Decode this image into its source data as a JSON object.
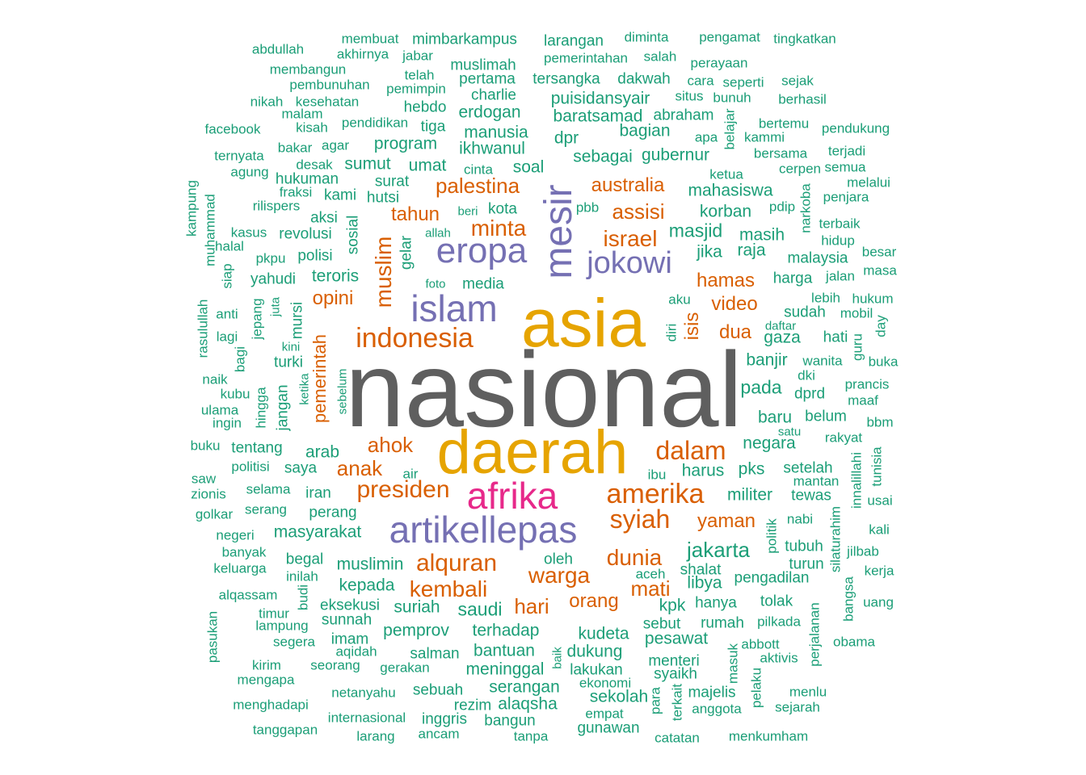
{
  "colors": {
    "gray": "#5f5f5f",
    "gold": "#e6a400",
    "purple": "#7570b3",
    "magenta": "#e7298a",
    "orange": "#d95f02",
    "green": "#1b9e77"
  },
  "words": [
    {
      "text": "nasional",
      "color": "gray"
    },
    {
      "text": "asia",
      "color": "gold"
    },
    {
      "text": "daerah",
      "color": "gold"
    },
    {
      "text": "islam",
      "color": "purple"
    },
    {
      "text": "eropa",
      "color": "purple"
    },
    {
      "text": "mesir",
      "color": "purple"
    },
    {
      "text": "jokowi",
      "color": "purple"
    },
    {
      "text": "artikellepas",
      "color": "purple"
    },
    {
      "text": "afrika",
      "color": "magenta"
    },
    {
      "text": "indonesia",
      "color": "orange"
    },
    {
      "text": "amerika",
      "color": "orange"
    },
    {
      "text": "syiah",
      "color": "orange"
    },
    {
      "text": "dalam",
      "color": "orange"
    },
    {
      "text": "presiden",
      "color": "orange"
    },
    {
      "text": "muslim",
      "color": "orange"
    },
    {
      "text": "palestina",
      "color": "orange"
    },
    {
      "text": "australia",
      "color": "orange"
    },
    {
      "text": "minta",
      "color": "orange"
    },
    {
      "text": "israel",
      "color": "orange"
    },
    {
      "text": "assisi",
      "color": "orange"
    },
    {
      "text": "tahun",
      "color": "orange"
    },
    {
      "text": "hamas",
      "color": "orange"
    },
    {
      "text": "video",
      "color": "orange"
    },
    {
      "text": "isis",
      "color": "orange"
    },
    {
      "text": "dua",
      "color": "orange"
    },
    {
      "text": "opini",
      "color": "orange"
    },
    {
      "text": "ahok",
      "color": "orange"
    },
    {
      "text": "anak",
      "color": "orange"
    },
    {
      "text": "alquran",
      "color": "orange"
    },
    {
      "text": "dunia",
      "color": "orange"
    },
    {
      "text": "kembali",
      "color": "orange"
    },
    {
      "text": "warga",
      "color": "orange"
    },
    {
      "text": "yaman",
      "color": "orange"
    },
    {
      "text": "mati",
      "color": "orange"
    },
    {
      "text": "hari",
      "color": "orange"
    },
    {
      "text": "orang",
      "color": "orange"
    },
    {
      "text": "pemerintah",
      "color": "orange"
    },
    {
      "text": "membuat",
      "color": "green"
    },
    {
      "text": "mimbarkampus",
      "color": "green"
    },
    {
      "text": "larangan",
      "color": "green"
    },
    {
      "text": "diminta",
      "color": "green"
    },
    {
      "text": "pengamat",
      "color": "green"
    },
    {
      "text": "tingkatkan",
      "color": "green"
    },
    {
      "text": "abdullah",
      "color": "green"
    },
    {
      "text": "akhirnya",
      "color": "green"
    },
    {
      "text": "jabar",
      "color": "green"
    },
    {
      "text": "muslimah",
      "color": "green"
    },
    {
      "text": "pemerintahan",
      "color": "green"
    },
    {
      "text": "salah",
      "color": "green"
    },
    {
      "text": "perayaan",
      "color": "green"
    },
    {
      "text": "membangun",
      "color": "green"
    },
    {
      "text": "telah",
      "color": "green"
    },
    {
      "text": "pertama",
      "color": "green"
    },
    {
      "text": "tersangka",
      "color": "green"
    },
    {
      "text": "dakwah",
      "color": "green"
    },
    {
      "text": "cara",
      "color": "green"
    },
    {
      "text": "seperti",
      "color": "green"
    },
    {
      "text": "sejak",
      "color": "green"
    },
    {
      "text": "pembunuhan",
      "color": "green"
    },
    {
      "text": "pemimpin",
      "color": "green"
    },
    {
      "text": "charlie",
      "color": "green"
    },
    {
      "text": "puisidansyair",
      "color": "green"
    },
    {
      "text": "situs",
      "color": "green"
    },
    {
      "text": "bunuh",
      "color": "green"
    },
    {
      "text": "berhasil",
      "color": "green"
    },
    {
      "text": "nikah",
      "color": "green"
    },
    {
      "text": "kesehatan",
      "color": "green"
    },
    {
      "text": "hebdo",
      "color": "green"
    },
    {
      "text": "malam",
      "color": "green"
    },
    {
      "text": "erdogan",
      "color": "green"
    },
    {
      "text": "baratsamad",
      "color": "green"
    },
    {
      "text": "abraham",
      "color": "green"
    },
    {
      "text": "pendidikan",
      "color": "green"
    },
    {
      "text": "bertemu",
      "color": "green"
    },
    {
      "text": "facebook",
      "color": "green"
    },
    {
      "text": "kisah",
      "color": "green"
    },
    {
      "text": "tiga",
      "color": "green"
    },
    {
      "text": "manusia",
      "color": "green"
    },
    {
      "text": "bagian",
      "color": "green"
    },
    {
      "text": "apa",
      "color": "green"
    },
    {
      "text": "belajar",
      "color": "green"
    },
    {
      "text": "kammi",
      "color": "green"
    },
    {
      "text": "pendukung",
      "color": "green"
    },
    {
      "text": "bakar",
      "color": "green"
    },
    {
      "text": "agar",
      "color": "green"
    },
    {
      "text": "program",
      "color": "green"
    },
    {
      "text": "ikhwanul",
      "color": "green"
    },
    {
      "text": "dpr",
      "color": "green"
    },
    {
      "text": "sebagai",
      "color": "green"
    },
    {
      "text": "gubernur",
      "color": "green"
    },
    {
      "text": "bersama",
      "color": "green"
    },
    {
      "text": "terjadi",
      "color": "green"
    },
    {
      "text": "ternyata",
      "color": "green"
    },
    {
      "text": "desak",
      "color": "green"
    },
    {
      "text": "sumut",
      "color": "green"
    },
    {
      "text": "umat",
      "color": "green"
    },
    {
      "text": "cinta",
      "color": "green"
    },
    {
      "text": "soal",
      "color": "green"
    },
    {
      "text": "ketua",
      "color": "green"
    },
    {
      "text": "cerpen",
      "color": "green"
    },
    {
      "text": "semua",
      "color": "green"
    },
    {
      "text": "agung",
      "color": "green"
    },
    {
      "text": "hukuman",
      "color": "green"
    },
    {
      "text": "surat",
      "color": "green"
    },
    {
      "text": "mahasiswa",
      "color": "green"
    },
    {
      "text": "melalui",
      "color": "green"
    },
    {
      "text": "kampung",
      "color": "green"
    },
    {
      "text": "fraksi",
      "color": "green"
    },
    {
      "text": "kami",
      "color": "green"
    },
    {
      "text": "hutsi",
      "color": "green"
    },
    {
      "text": "narkoba",
      "color": "green"
    },
    {
      "text": "penjara",
      "color": "green"
    },
    {
      "text": "muhammad",
      "color": "green"
    },
    {
      "text": "rilispers",
      "color": "green"
    },
    {
      "text": "kota",
      "color": "green"
    },
    {
      "text": "beri",
      "color": "green"
    },
    {
      "text": "pbb",
      "color": "green"
    },
    {
      "text": "korban",
      "color": "green"
    },
    {
      "text": "pdip",
      "color": "green"
    },
    {
      "text": "aksi",
      "color": "green"
    },
    {
      "text": "terbaik",
      "color": "green"
    },
    {
      "text": "kasus",
      "color": "green"
    },
    {
      "text": "revolusi",
      "color": "green"
    },
    {
      "text": "sosial",
      "color": "green"
    },
    {
      "text": "allah",
      "color": "green"
    },
    {
      "text": "masjid",
      "color": "green"
    },
    {
      "text": "masih",
      "color": "green"
    },
    {
      "text": "hidup",
      "color": "green"
    },
    {
      "text": "halal",
      "color": "green"
    },
    {
      "text": "gelar",
      "color": "green"
    },
    {
      "text": "jika",
      "color": "green"
    },
    {
      "text": "raja",
      "color": "green"
    },
    {
      "text": "besar",
      "color": "green"
    },
    {
      "text": "pkpu",
      "color": "green"
    },
    {
      "text": "polisi",
      "color": "green"
    },
    {
      "text": "malaysia",
      "color": "green"
    },
    {
      "text": "siap",
      "color": "green"
    },
    {
      "text": "teroris",
      "color": "green"
    },
    {
      "text": "masa",
      "color": "green"
    },
    {
      "text": "yahudi",
      "color": "green"
    },
    {
      "text": "foto",
      "color": "green"
    },
    {
      "text": "media",
      "color": "green"
    },
    {
      "text": "harga",
      "color": "green"
    },
    {
      "text": "jalan",
      "color": "green"
    },
    {
      "text": "lebih",
      "color": "green"
    },
    {
      "text": "aku",
      "color": "green"
    },
    {
      "text": "hukum",
      "color": "green"
    },
    {
      "text": "rasulullah",
      "color": "green"
    },
    {
      "text": "juta",
      "color": "green"
    },
    {
      "text": "jepang",
      "color": "green"
    },
    {
      "text": "mursi",
      "color": "green"
    },
    {
      "text": "sudah",
      "color": "green"
    },
    {
      "text": "mobil",
      "color": "green"
    },
    {
      "text": "anti",
      "color": "green"
    },
    {
      "text": "daftar",
      "color": "green"
    },
    {
      "text": "day",
      "color": "green"
    },
    {
      "text": "lagi",
      "color": "green"
    },
    {
      "text": "kini",
      "color": "green"
    },
    {
      "text": "diri",
      "color": "green"
    },
    {
      "text": "gaza",
      "color": "green"
    },
    {
      "text": "hati",
      "color": "green"
    },
    {
      "text": "bagi",
      "color": "green"
    },
    {
      "text": "turki",
      "color": "green"
    },
    {
      "text": "guru",
      "color": "green"
    },
    {
      "text": "banjir",
      "color": "green"
    },
    {
      "text": "wanita",
      "color": "green"
    },
    {
      "text": "buka",
      "color": "green"
    },
    {
      "text": "naik",
      "color": "green"
    },
    {
      "text": "ketika",
      "color": "green"
    },
    {
      "text": "dki",
      "color": "green"
    },
    {
      "text": "prancis",
      "color": "green"
    },
    {
      "text": "kubu",
      "color": "green"
    },
    {
      "text": "hingga",
      "color": "green"
    },
    {
      "text": "jangan",
      "color": "green"
    },
    {
      "text": "pada",
      "color": "green"
    },
    {
      "text": "dprd",
      "color": "green"
    },
    {
      "text": "maaf",
      "color": "green"
    },
    {
      "text": "ulama",
      "color": "green"
    },
    {
      "text": "sebelum",
      "color": "green"
    },
    {
      "text": "ingin",
      "color": "green"
    },
    {
      "text": "baru",
      "color": "green"
    },
    {
      "text": "belum",
      "color": "green"
    },
    {
      "text": "bbm",
      "color": "green"
    },
    {
      "text": "satu",
      "color": "green"
    },
    {
      "text": "rakyat",
      "color": "green"
    },
    {
      "text": "buku",
      "color": "green"
    },
    {
      "text": "tentang",
      "color": "green"
    },
    {
      "text": "arab",
      "color": "green"
    },
    {
      "text": "negara",
      "color": "green"
    },
    {
      "text": "tunisia",
      "color": "green"
    },
    {
      "text": "politisi",
      "color": "green"
    },
    {
      "text": "saya",
      "color": "green"
    },
    {
      "text": "harus",
      "color": "green"
    },
    {
      "text": "pks",
      "color": "green"
    },
    {
      "text": "setelah",
      "color": "green"
    },
    {
      "text": "saw",
      "color": "green"
    },
    {
      "text": "air",
      "color": "green"
    },
    {
      "text": "ibu",
      "color": "green"
    },
    {
      "text": "mantan",
      "color": "green"
    },
    {
      "text": "innalillahi",
      "color": "green"
    },
    {
      "text": "zionis",
      "color": "green"
    },
    {
      "text": "selama",
      "color": "green"
    },
    {
      "text": "iran",
      "color": "green"
    },
    {
      "text": "militer",
      "color": "green"
    },
    {
      "text": "tewas",
      "color": "green"
    },
    {
      "text": "usai",
      "color": "green"
    },
    {
      "text": "golkar",
      "color": "green"
    },
    {
      "text": "serang",
      "color": "green"
    },
    {
      "text": "perang",
      "color": "green"
    },
    {
      "text": "nabi",
      "color": "green"
    },
    {
      "text": "negeri",
      "color": "green"
    },
    {
      "text": "masyarakat",
      "color": "green"
    },
    {
      "text": "politik",
      "color": "green"
    },
    {
      "text": "silaturahim",
      "color": "green"
    },
    {
      "text": "kali",
      "color": "green"
    },
    {
      "text": "jakarta",
      "color": "green"
    },
    {
      "text": "banyak",
      "color": "green"
    },
    {
      "text": "tubuh",
      "color": "green"
    },
    {
      "text": "begal",
      "color": "green"
    },
    {
      "text": "oleh",
      "color": "green"
    },
    {
      "text": "jilbab",
      "color": "green"
    },
    {
      "text": "keluarga",
      "color": "green"
    },
    {
      "text": "muslimin",
      "color": "green"
    },
    {
      "text": "turun",
      "color": "green"
    },
    {
      "text": "inilah",
      "color": "green"
    },
    {
      "text": "aceh",
      "color": "green"
    },
    {
      "text": "shalat",
      "color": "green"
    },
    {
      "text": "kerja",
      "color": "green"
    },
    {
      "text": "libya",
      "color": "green"
    },
    {
      "text": "pengadilan",
      "color": "green"
    },
    {
      "text": "budi",
      "color": "green"
    },
    {
      "text": "kepada",
      "color": "green"
    },
    {
      "text": "alqassam",
      "color": "green"
    },
    {
      "text": "bangsa",
      "color": "green"
    },
    {
      "text": "eksekusi",
      "color": "green"
    },
    {
      "text": "suriah",
      "color": "green"
    },
    {
      "text": "saudi",
      "color": "green"
    },
    {
      "text": "kpk",
      "color": "green"
    },
    {
      "text": "hanya",
      "color": "green"
    },
    {
      "text": "tolak",
      "color": "green"
    },
    {
      "text": "uang",
      "color": "green"
    },
    {
      "text": "timur",
      "color": "green"
    },
    {
      "text": "sunnah",
      "color": "green"
    },
    {
      "text": "sebut",
      "color": "green"
    },
    {
      "text": "rumah",
      "color": "green"
    },
    {
      "text": "pilkada",
      "color": "green"
    },
    {
      "text": "lampung",
      "color": "green"
    },
    {
      "text": "pemprov",
      "color": "green"
    },
    {
      "text": "terhadap",
      "color": "green"
    },
    {
      "text": "kudeta",
      "color": "green"
    },
    {
      "text": "perjalanan",
      "color": "green"
    },
    {
      "text": "pasukan",
      "color": "green"
    },
    {
      "text": "segera",
      "color": "green"
    },
    {
      "text": "imam",
      "color": "green"
    },
    {
      "text": "pesawat",
      "color": "green"
    },
    {
      "text": "abbott",
      "color": "green"
    },
    {
      "text": "obama",
      "color": "green"
    },
    {
      "text": "aqidah",
      "color": "green"
    },
    {
      "text": "bantuan",
      "color": "green"
    },
    {
      "text": "dukung",
      "color": "green"
    },
    {
      "text": "salman",
      "color": "green"
    },
    {
      "text": "baik",
      "color": "green"
    },
    {
      "text": "masuk",
      "color": "green"
    },
    {
      "text": "aktivis",
      "color": "green"
    },
    {
      "text": "kirim",
      "color": "green"
    },
    {
      "text": "seorang",
      "color": "green"
    },
    {
      "text": "gerakan",
      "color": "green"
    },
    {
      "text": "meninggal",
      "color": "green"
    },
    {
      "text": "menteri",
      "color": "green"
    },
    {
      "text": "lakukan",
      "color": "green"
    },
    {
      "text": "syaikh",
      "color": "green"
    },
    {
      "text": "mengapa",
      "color": "green"
    },
    {
      "text": "ekonomi",
      "color": "green"
    },
    {
      "text": "pelaku",
      "color": "green"
    },
    {
      "text": "netanyahu",
      "color": "green"
    },
    {
      "text": "sebuah",
      "color": "green"
    },
    {
      "text": "serangan",
      "color": "green"
    },
    {
      "text": "para",
      "color": "green"
    },
    {
      "text": "majelis",
      "color": "green"
    },
    {
      "text": "menlu",
      "color": "green"
    },
    {
      "text": "sekolah",
      "color": "green"
    },
    {
      "text": "menghadapi",
      "color": "green"
    },
    {
      "text": "rezim",
      "color": "green"
    },
    {
      "text": "alaqsha",
      "color": "green"
    },
    {
      "text": "terkait",
      "color": "green"
    },
    {
      "text": "anggota",
      "color": "green"
    },
    {
      "text": "sejarah",
      "color": "green"
    },
    {
      "text": "internasional",
      "color": "green"
    },
    {
      "text": "inggris",
      "color": "green"
    },
    {
      "text": "bangun",
      "color": "green"
    },
    {
      "text": "empat",
      "color": "green"
    },
    {
      "text": "tanggapan",
      "color": "green"
    },
    {
      "text": "gunawan",
      "color": "green"
    },
    {
      "text": "larang",
      "color": "green"
    },
    {
      "text": "ancam",
      "color": "green"
    },
    {
      "text": "tanpa",
      "color": "green"
    },
    {
      "text": "catatan",
      "color": "green"
    },
    {
      "text": "menkumham",
      "color": "green"
    }
  ]
}
